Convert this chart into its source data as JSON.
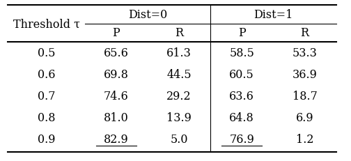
{
  "title_col": "Threshold τ",
  "group1_header": "Dist=0",
  "group2_header": "Dist=1",
  "subheaders": [
    "P",
    "R",
    "P",
    "R"
  ],
  "rows": [
    {
      "tau": "0.5",
      "d0p": "65.6",
      "d0r": "61.3",
      "d1p": "58.5",
      "d1r": "53.3"
    },
    {
      "tau": "0.6",
      "d0p": "69.8",
      "d0r": "44.5",
      "d1p": "60.5",
      "d1r": "36.9"
    },
    {
      "tau": "0.7",
      "d0p": "74.6",
      "d0r": "29.2",
      "d1p": "63.6",
      "d1r": "18.7"
    },
    {
      "tau": "0.8",
      "d0p": "81.0",
      "d0r": "13.9",
      "d1p": "64.8",
      "d1r": "6.9"
    },
    {
      "tau": "0.9",
      "d0p": "82.9",
      "d0r": "5.0",
      "d1p": "76.9",
      "d1r": "1.2"
    }
  ],
  "underline_cells": [
    [
      4,
      1
    ],
    [
      4,
      3
    ]
  ],
  "bg_color": "#ffffff",
  "text_color": "#000000",
  "font_size": 11.5,
  "header_font_size": 11.5
}
